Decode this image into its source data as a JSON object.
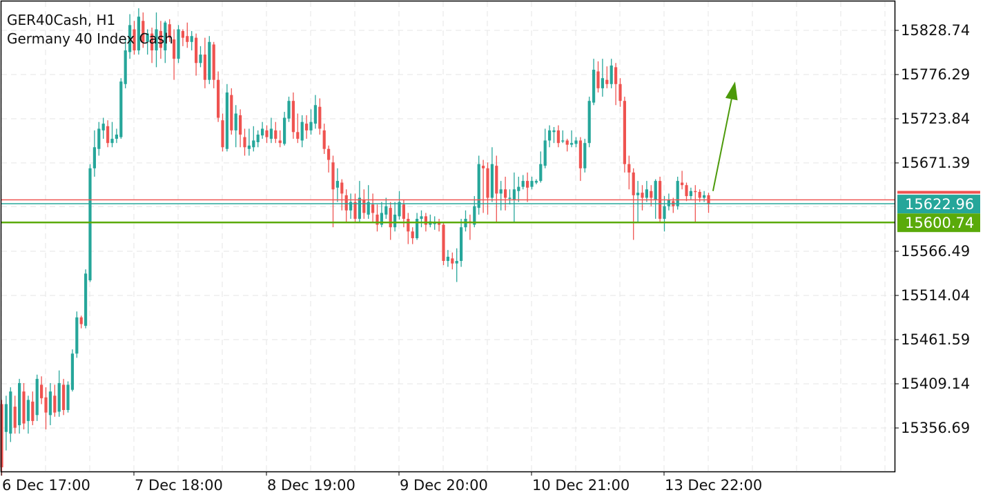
{
  "header": {
    "symbol_line": "GER40Cash, H1",
    "description": "Germany 40 Index Cash"
  },
  "colors": {
    "bull": "#26a69a",
    "bear": "#ef5350",
    "grid": "#e6e6e6",
    "frame": "#000000",
    "bid_line": "#ef5350",
    "ask_line": "#26a69a",
    "level_line": "#5aaa0a",
    "arrow": "#4c9a0a"
  },
  "chart_data": {
    "type": "candlestick",
    "y_ticks": [
      "15828.74",
      "15776.29",
      "15723.84",
      "15671.39",
      "15566.49",
      "15514.04",
      "15461.59",
      "15409.14",
      "15356.69"
    ],
    "x_ticks": [
      "6 Dec 17:00",
      "7 Dec 18:00",
      "8 Dec 19:00",
      "9 Dec 20:00",
      "10 Dec 21:00",
      "13 Dec 22:00"
    ],
    "ylim": [
      15305,
      15860
    ],
    "grid": true,
    "price_tags": [
      {
        "label": "15622.96",
        "value": 15622.96,
        "color": "#26a69a"
      },
      {
        "label": "15600.74",
        "value": 15600.74,
        "color": "#5aaa0a"
      }
    ],
    "lines": [
      {
        "name": "bid",
        "value": 15627.5,
        "color": "#ef5350"
      },
      {
        "name": "ask",
        "value": 15622.96,
        "color": "#26a69a"
      },
      {
        "name": "level",
        "value": 15600.74,
        "color": "#5aaa0a"
      }
    ],
    "arrow": {
      "from": {
        "index": 161,
        "value": 15638
      },
      "to": {
        "index": 166,
        "value": 15768
      }
    },
    "candles": [
      [
        15385,
        15310,
        15390,
        15300
      ],
      [
        15352,
        15385,
        15395,
        15330
      ],
      [
        15350,
        15400,
        15405,
        15340
      ],
      [
        15382,
        15357,
        15395,
        15350
      ],
      [
        15360,
        15410,
        15415,
        15350
      ],
      [
        15400,
        15362,
        15410,
        15355
      ],
      [
        15365,
        15390,
        15395,
        15350
      ],
      [
        15388,
        15365,
        15400,
        15360
      ],
      [
        15372,
        15415,
        15420,
        15365
      ],
      [
        15408,
        15392,
        15418,
        15385
      ],
      [
        15393,
        15375,
        15405,
        15355
      ],
      [
        15372,
        15400,
        15410,
        15360
      ],
      [
        15395,
        15375,
        15408,
        15370
      ],
      [
        15376,
        15410,
        15425,
        15370
      ],
      [
        15408,
        15378,
        15415,
        15372
      ],
      [
        15378,
        15408,
        15412,
        15375
      ],
      [
        15402,
        15445,
        15450,
        15400
      ],
      [
        15445,
        15488,
        15495,
        15440
      ],
      [
        15488,
        15480,
        15490,
        15475
      ],
      [
        15478,
        15540,
        15545,
        15475
      ],
      [
        15532,
        15665,
        15670,
        15530
      ],
      [
        15665,
        15690,
        15710,
        15655
      ],
      [
        15688,
        15712,
        15720,
        15680
      ],
      [
        15710,
        15718,
        15725,
        15700
      ],
      [
        15715,
        15695,
        15722,
        15690
      ],
      [
        15695,
        15700,
        15720,
        15690
      ],
      [
        15700,
        15705,
        15712,
        15695
      ],
      [
        15702,
        15768,
        15772,
        15700
      ],
      [
        15765,
        15805,
        15820,
        15760
      ],
      [
        15803,
        15835,
        15848,
        15795
      ],
      [
        15830,
        15805,
        15840,
        15800
      ],
      [
        15805,
        15845,
        15855,
        15800
      ],
      [
        15840,
        15815,
        15850,
        15808
      ],
      [
        15815,
        15825,
        15830,
        15800
      ],
      [
        15825,
        15805,
        15832,
        15790
      ],
      [
        15805,
        15830,
        15850,
        15785
      ],
      [
        15828,
        15808,
        15840,
        15795
      ],
      [
        15805,
        15838,
        15840,
        15790
      ],
      [
        15836,
        15820,
        15842,
        15815
      ],
      [
        15818,
        15795,
        15830,
        15770
      ],
      [
        15795,
        15830,
        15835,
        15790
      ],
      [
        15828,
        15820,
        15830,
        15810
      ],
      [
        15822,
        15815,
        15838,
        15808
      ],
      [
        15815,
        15822,
        15828,
        15805
      ],
      [
        15820,
        15790,
        15825,
        15775
      ],
      [
        15790,
        15800,
        15810,
        15785
      ],
      [
        15800,
        15770,
        15820,
        15760
      ],
      [
        15770,
        15815,
        15822,
        15765
      ],
      [
        15812,
        15770,
        15815,
        15760
      ],
      [
        15770,
        15725,
        15780,
        15720
      ],
      [
        15722,
        15690,
        15730,
        15685
      ],
      [
        15688,
        15755,
        15765,
        15685
      ],
      [
        15752,
        15710,
        15760,
        15705
      ],
      [
        15710,
        15730,
        15740,
        15690
      ],
      [
        15728,
        15705,
        15735,
        15690
      ],
      [
        15702,
        15690,
        15712,
        15680
      ],
      [
        15688,
        15692,
        15712,
        15680
      ],
      [
        15690,
        15698,
        15715,
        15685
      ],
      [
        15696,
        15705,
        15710,
        15690
      ],
      [
        15704,
        15712,
        15720,
        15700
      ],
      [
        15710,
        15702,
        15716,
        15695
      ],
      [
        15700,
        15712,
        15725,
        15695
      ],
      [
        15710,
        15700,
        15720,
        15695
      ],
      [
        15698,
        15695,
        15710,
        15690
      ],
      [
        15694,
        15725,
        15732,
        15692
      ],
      [
        15724,
        15745,
        15750,
        15720
      ],
      [
        15745,
        15708,
        15755,
        15700
      ],
      [
        15708,
        15700,
        15730,
        15695
      ],
      [
        15698,
        15720,
        15728,
        15690
      ],
      [
        15718,
        15710,
        15728,
        15700
      ],
      [
        15710,
        15720,
        15735,
        15705
      ],
      [
        15718,
        15740,
        15752,
        15712
      ],
      [
        15738,
        15712,
        15748,
        15705
      ],
      [
        15710,
        15688,
        15718,
        15682
      ],
      [
        15688,
        15675,
        15692,
        15660
      ],
      [
        15672,
        15640,
        15680,
        15595
      ],
      [
        15642,
        15650,
        15665,
        15625
      ],
      [
        15648,
        15635,
        15652,
        15615
      ],
      [
        15633,
        15615,
        15640,
        15600
      ],
      [
        15615,
        15625,
        15635,
        15605
      ],
      [
        15625,
        15605,
        15635,
        15600
      ],
      [
        15605,
        15630,
        15650,
        15600
      ],
      [
        15628,
        15612,
        15640,
        15605
      ],
      [
        15610,
        15625,
        15645,
        15605
      ],
      [
        15622,
        15612,
        15635,
        15600
      ],
      [
        15610,
        15598,
        15622,
        15590
      ],
      [
        15598,
        15612,
        15625,
        15595
      ],
      [
        15610,
        15620,
        15630,
        15605
      ],
      [
        15618,
        15595,
        15625,
        15580
      ],
      [
        15595,
        15610,
        15625,
        15590
      ],
      [
        15608,
        15625,
        15638,
        15604
      ],
      [
        15622,
        15605,
        15628,
        15595
      ],
      [
        15605,
        15590,
        15612,
        15575
      ],
      [
        15590,
        15582,
        15595,
        15575
      ],
      [
        15582,
        15605,
        15612,
        15580
      ],
      [
        15605,
        15608,
        15615,
        15595
      ],
      [
        15608,
        15598,
        15612,
        15590
      ],
      [
        15598,
        15602,
        15610,
        15595
      ],
      [
        15600,
        15600,
        15608,
        15592
      ],
      [
        15600,
        15598,
        15605,
        15590
      ],
      [
        15598,
        15555,
        15600,
        15550
      ],
      [
        15555,
        15560,
        15568,
        15548
      ],
      [
        15558,
        15552,
        15565,
        15545
      ],
      [
        15552,
        15555,
        15570,
        15530
      ],
      [
        15555,
        15595,
        15605,
        15548
      ],
      [
        15595,
        15605,
        15615,
        15590
      ],
      [
        15602,
        15600,
        15610,
        15580
      ],
      [
        15598,
        15620,
        15632,
        15595
      ],
      [
        15618,
        15670,
        15680,
        15610
      ],
      [
        15668,
        15665,
        15675,
        15612
      ],
      [
        15665,
        15630,
        15672,
        15610
      ],
      [
        15630,
        15670,
        15690,
        15625
      ],
      [
        15668,
        15635,
        15680,
        15600
      ],
      [
        15635,
        15640,
        15650,
        15615
      ],
      [
        15640,
        15630,
        15655,
        15615
      ],
      [
        15630,
        15630,
        15640,
        15622
      ],
      [
        15628,
        15640,
        15660,
        15600
      ],
      [
        15638,
        15643,
        15655,
        15625
      ],
      [
        15643,
        15650,
        15657,
        15640
      ],
      [
        15650,
        15642,
        15660,
        15625
      ],
      [
        15643,
        15650,
        15655,
        15640
      ],
      [
        15648,
        15650,
        15652,
        15646
      ],
      [
        15650,
        15670,
        15685,
        15648
      ],
      [
        15668,
        15698,
        15712,
        15665
      ],
      [
        15698,
        15710,
        15716,
        15690
      ],
      [
        15708,
        15710,
        15714,
        15695
      ],
      [
        15710,
        15695,
        15716,
        15690
      ],
      [
        15697,
        15698,
        15710,
        15695
      ],
      [
        15698,
        15693,
        15700,
        15685
      ],
      [
        15693,
        15695,
        15710,
        15690
      ],
      [
        15694,
        15698,
        15702,
        15690
      ],
      [
        15698,
        15665,
        15702,
        15650
      ],
      [
        15665,
        15695,
        15700,
        15660
      ],
      [
        15695,
        15745,
        15750,
        15690
      ],
      [
        15743,
        15782,
        15795,
        15740
      ],
      [
        15780,
        15760,
        15792,
        15755
      ],
      [
        15760,
        15772,
        15795,
        15750
      ],
      [
        15770,
        15765,
        15786,
        15760
      ],
      [
        15765,
        15787,
        15795,
        15760
      ],
      [
        15785,
        15765,
        15790,
        15740
      ],
      [
        15765,
        15745,
        15772,
        15738
      ],
      [
        15745,
        15670,
        15750,
        15660
      ],
      [
        15670,
        15660,
        15680,
        15640
      ],
      [
        15660,
        15633,
        15665,
        15580
      ],
      [
        15633,
        15636,
        15650,
        15600
      ],
      [
        15636,
        15630,
        15645,
        15615
      ],
      [
        15630,
        15640,
        15650,
        15625
      ],
      [
        15638,
        15630,
        15645,
        15620
      ],
      [
        15628,
        15650,
        15652,
        15605
      ],
      [
        15650,
        15605,
        15655,
        15600
      ],
      [
        15605,
        15620,
        15632,
        15590
      ],
      [
        15620,
        15628,
        15635,
        15615
      ],
      [
        15626,
        15620,
        15630,
        15612
      ],
      [
        15620,
        15650,
        15655,
        15616
      ],
      [
        15648,
        15645,
        15662,
        15640
      ],
      [
        15645,
        15632,
        15648,
        15626
      ],
      [
        15632,
        15638,
        15642,
        15628
      ],
      [
        15638,
        15637,
        15645,
        15600
      ],
      [
        15637,
        15630,
        15640,
        15625
      ],
      [
        15630,
        15633,
        15638,
        15625
      ],
      [
        15633,
        15623,
        15636,
        15612
      ]
    ]
  }
}
